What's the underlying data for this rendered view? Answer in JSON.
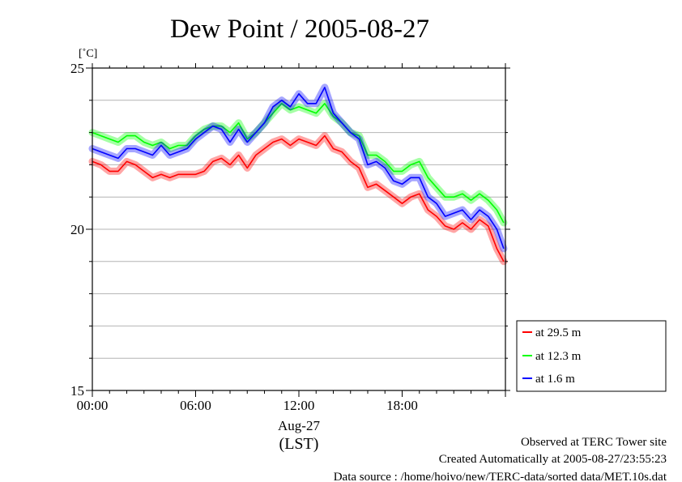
{
  "chart_data": {
    "type": "line",
    "title": "Dew Point / 2005-08-27",
    "ylabel": "[˚C]",
    "ylim": [
      15,
      25
    ],
    "yticks": [
      15,
      20,
      25
    ],
    "xlim": [
      0,
      23.9
    ],
    "xticks": [
      {
        "value": 0,
        "label": "00:00"
      },
      {
        "value": 6,
        "label": "06:00"
      },
      {
        "value": 12,
        "label": "12:00"
      },
      {
        "value": 18,
        "label": "18:00"
      }
    ],
    "date_label": "Aug-27",
    "timezone_label": "(LST)",
    "grid": true,
    "legend_position": "right",
    "x_unit": "hour of day (LST)",
    "series": [
      {
        "name": "at 29.5 m",
        "color": "#ff0000",
        "x": [
          0,
          0.5,
          1,
          1.5,
          2,
          2.5,
          3,
          3.5,
          4,
          4.5,
          5,
          5.5,
          6,
          6.5,
          7,
          7.5,
          8,
          8.5,
          9,
          9.5,
          10,
          10.5,
          11,
          11.5,
          12,
          12.5,
          13,
          13.5,
          14,
          14.5,
          15,
          15.5,
          16,
          16.5,
          17,
          17.5,
          18,
          18.5,
          19,
          19.5,
          20,
          20.5,
          21,
          21.5,
          22,
          22.5,
          23,
          23.5,
          23.9
        ],
        "y": [
          22.1,
          22.0,
          21.8,
          21.8,
          22.1,
          22.0,
          21.8,
          21.6,
          21.7,
          21.6,
          21.7,
          21.7,
          21.7,
          21.8,
          22.1,
          22.2,
          22.0,
          22.3,
          21.9,
          22.3,
          22.5,
          22.7,
          22.8,
          22.6,
          22.8,
          22.7,
          22.6,
          22.9,
          22.5,
          22.4,
          22.1,
          21.9,
          21.3,
          21.4,
          21.2,
          21.0,
          20.8,
          21.0,
          21.1,
          20.6,
          20.4,
          20.1,
          20.0,
          20.2,
          20.0,
          20.3,
          20.1,
          19.4,
          19.0
        ]
      },
      {
        "name": "at 12.3 m",
        "color": "#00ff00",
        "x": [
          0,
          0.5,
          1,
          1.5,
          2,
          2.5,
          3,
          3.5,
          4,
          4.5,
          5,
          5.5,
          6,
          6.5,
          7,
          7.5,
          8,
          8.5,
          9,
          9.5,
          10,
          10.5,
          11,
          11.5,
          12,
          12.5,
          13,
          13.5,
          14,
          14.5,
          15,
          15.5,
          16,
          16.5,
          17,
          17.5,
          18,
          18.5,
          19,
          19.5,
          20,
          20.5,
          21,
          21.5,
          22,
          22.5,
          23,
          23.5,
          23.9
        ],
        "y": [
          23.0,
          22.9,
          22.8,
          22.7,
          22.9,
          22.9,
          22.7,
          22.6,
          22.7,
          22.5,
          22.6,
          22.6,
          22.9,
          23.1,
          23.2,
          23.2,
          23.0,
          23.3,
          22.8,
          23.0,
          23.3,
          23.6,
          23.9,
          23.7,
          23.8,
          23.7,
          23.6,
          23.9,
          23.5,
          23.3,
          23.0,
          22.9,
          22.3,
          22.3,
          22.1,
          21.8,
          21.8,
          22.0,
          22.1,
          21.6,
          21.3,
          21.0,
          21.0,
          21.1,
          20.9,
          21.1,
          20.9,
          20.6,
          20.2
        ]
      },
      {
        "name": "at 1.6 m",
        "color": "#0000ff",
        "x": [
          0,
          0.5,
          1,
          1.5,
          2,
          2.5,
          3,
          3.5,
          4,
          4.5,
          5,
          5.5,
          6,
          6.5,
          7,
          7.5,
          8,
          8.5,
          9,
          9.5,
          10,
          10.5,
          11,
          11.5,
          12,
          12.5,
          13,
          13.5,
          14,
          14.5,
          15,
          15.5,
          16,
          16.5,
          17,
          17.5,
          18,
          18.5,
          19,
          19.5,
          20,
          20.5,
          21,
          21.5,
          22,
          22.5,
          23,
          23.5,
          23.9
        ],
        "y": [
          22.5,
          22.4,
          22.3,
          22.2,
          22.5,
          22.5,
          22.4,
          22.3,
          22.6,
          22.3,
          22.4,
          22.5,
          22.8,
          23.0,
          23.2,
          23.1,
          22.7,
          23.1,
          22.7,
          23.0,
          23.3,
          23.8,
          24.0,
          23.8,
          24.2,
          23.9,
          23.9,
          24.4,
          23.6,
          23.3,
          23.0,
          22.8,
          22.0,
          22.1,
          21.9,
          21.5,
          21.4,
          21.6,
          21.6,
          21.0,
          20.8,
          20.4,
          20.5,
          20.6,
          20.3,
          20.6,
          20.4,
          20.0,
          19.4
        ]
      }
    ]
  },
  "footer": {
    "line1": "Observed at TERC Tower site",
    "line2": "Created Automatically at 2005-08-27/23:55:23",
    "line3": "Data source : /home/hoivo/new/TERC-data/sorted data/MET.10s.dat"
  }
}
